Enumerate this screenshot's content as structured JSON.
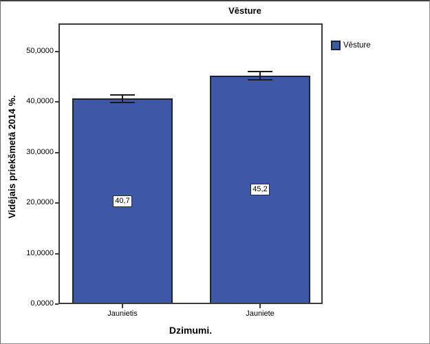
{
  "chart_data": {
    "type": "bar",
    "title": "Vēsture",
    "categories": [
      "Jaunietis",
      "Jauniete"
    ],
    "values": [
      40.7,
      45.2
    ],
    "value_labels": [
      "40,7",
      "45,2"
    ],
    "error_bars": [
      0.75,
      0.8
    ],
    "xlabel": "Dzimumi.",
    "ylabel": "Vidējais priekšmetā 2014 %.",
    "ylim": [
      0,
      55.5
    ],
    "yticks": [
      0,
      10,
      20,
      30,
      40,
      50
    ],
    "ytick_labels": [
      "0,0000",
      "10,0000",
      "20,0000",
      "30,0000",
      "40,0000",
      "50,0000"
    ],
    "legend": [
      "Vēsture"
    ],
    "legend_position": "right",
    "grid": false,
    "bar_color": "#3E57A6",
    "bar_border_color": "#1b2334",
    "error_bar_color": "#1a1a1a",
    "frame_color": "#3b3b3b"
  }
}
